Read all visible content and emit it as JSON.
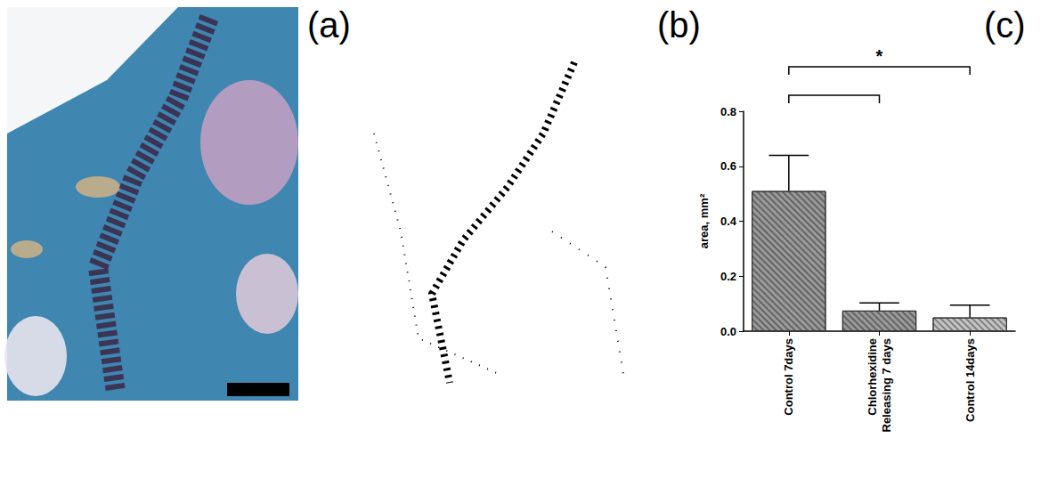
{
  "panel_labels": [
    "(a)",
    "(b)",
    "(c)"
  ],
  "chart_data": {
    "type": "bar",
    "categories": [
      "Control 7days",
      "Chlorhexidine Releasing 7 days",
      "Control 14days"
    ],
    "values": [
      0.51,
      0.075,
      0.05
    ],
    "errors": [
      0.13,
      0.028,
      0.045
    ],
    "colors": [
      "#9a9a9a",
      "#9a9a9a",
      "#c4c4c4"
    ],
    "y_label": "area, mm²",
    "ylim": [
      0,
      0.8
    ],
    "yticks": [
      {
        "value": 0,
        "label": "0.0"
      },
      0.2,
      0.4,
      0.6,
      0.8
    ],
    "grid": false,
    "brackets": [
      {
        "from": "Control 7days",
        "to": "Chlorhexidine Releasing 7 days"
      },
      {
        "from": "Control 7days",
        "to": "Control 14days",
        "label": "*"
      }
    ]
  }
}
